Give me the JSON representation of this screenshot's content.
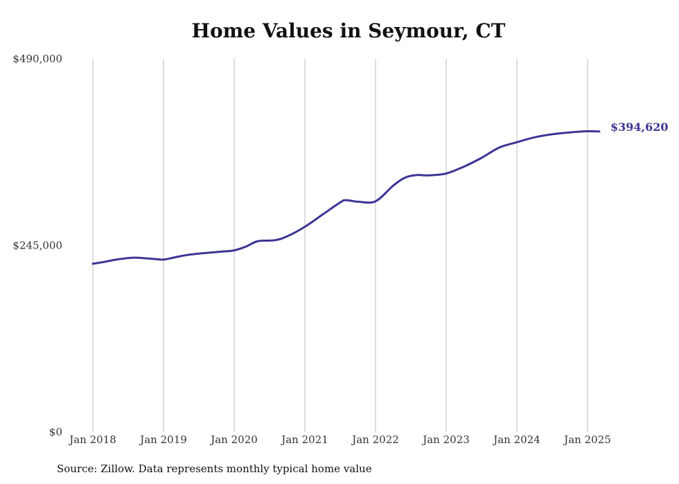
{
  "title": "Home Values in Seymour, CT",
  "source": "Source: Zillow. Data represents monthly typical home value",
  "chart_data": {
    "type": "line",
    "title": "Home Values in Seymour, CT",
    "xlabel": "",
    "ylabel": "",
    "ylim": [
      0,
      490000
    ],
    "yticks": [
      0,
      245000,
      490000
    ],
    "ytick_labels": [
      "$0",
      "$245,000",
      "$490,000"
    ],
    "xticks": [
      "2018-01",
      "2019-01",
      "2020-01",
      "2021-01",
      "2022-01",
      "2023-01",
      "2024-01",
      "2025-01"
    ],
    "xtick_labels": [
      "Jan 2018",
      "Jan 2019",
      "Jan 2020",
      "Jan 2021",
      "Jan 2022",
      "Jan 2023",
      "Jan 2024",
      "Jan 2025"
    ],
    "grid": "vertical",
    "line_color": "#3b3595",
    "end_label": "$394,620",
    "series": [
      {
        "x": [
          "2018-01",
          "2018-03",
          "2018-05",
          "2018-08",
          "2018-11",
          "2019-01",
          "2019-03",
          "2019-05",
          "2019-08",
          "2019-11",
          "2020-01",
          "2020-03",
          "2020-05",
          "2020-08",
          "2020-10",
          "2021-01",
          "2021-04",
          "2021-07",
          "2021-08",
          "2021-10",
          "2022-01",
          "2022-04",
          "2022-06",
          "2022-08",
          "2022-10",
          "2023-01",
          "2023-04",
          "2023-07",
          "2023-10",
          "2024-01",
          "2024-04",
          "2024-07",
          "2024-10",
          "2025-01",
          "2025-03"
        ],
        "values": [
          221000,
          223500,
          226500,
          229000,
          227500,
          226500,
          229500,
          232500,
          235000,
          237000,
          238500,
          243500,
          250500,
          252000,
          257000,
          269500,
          285500,
          301500,
          304500,
          302500,
          303000,
          323500,
          334000,
          337500,
          337000,
          339500,
          348500,
          360000,
          373500,
          380500,
          387000,
          391000,
          393500,
          395000,
          394620
        ]
      }
    ]
  }
}
